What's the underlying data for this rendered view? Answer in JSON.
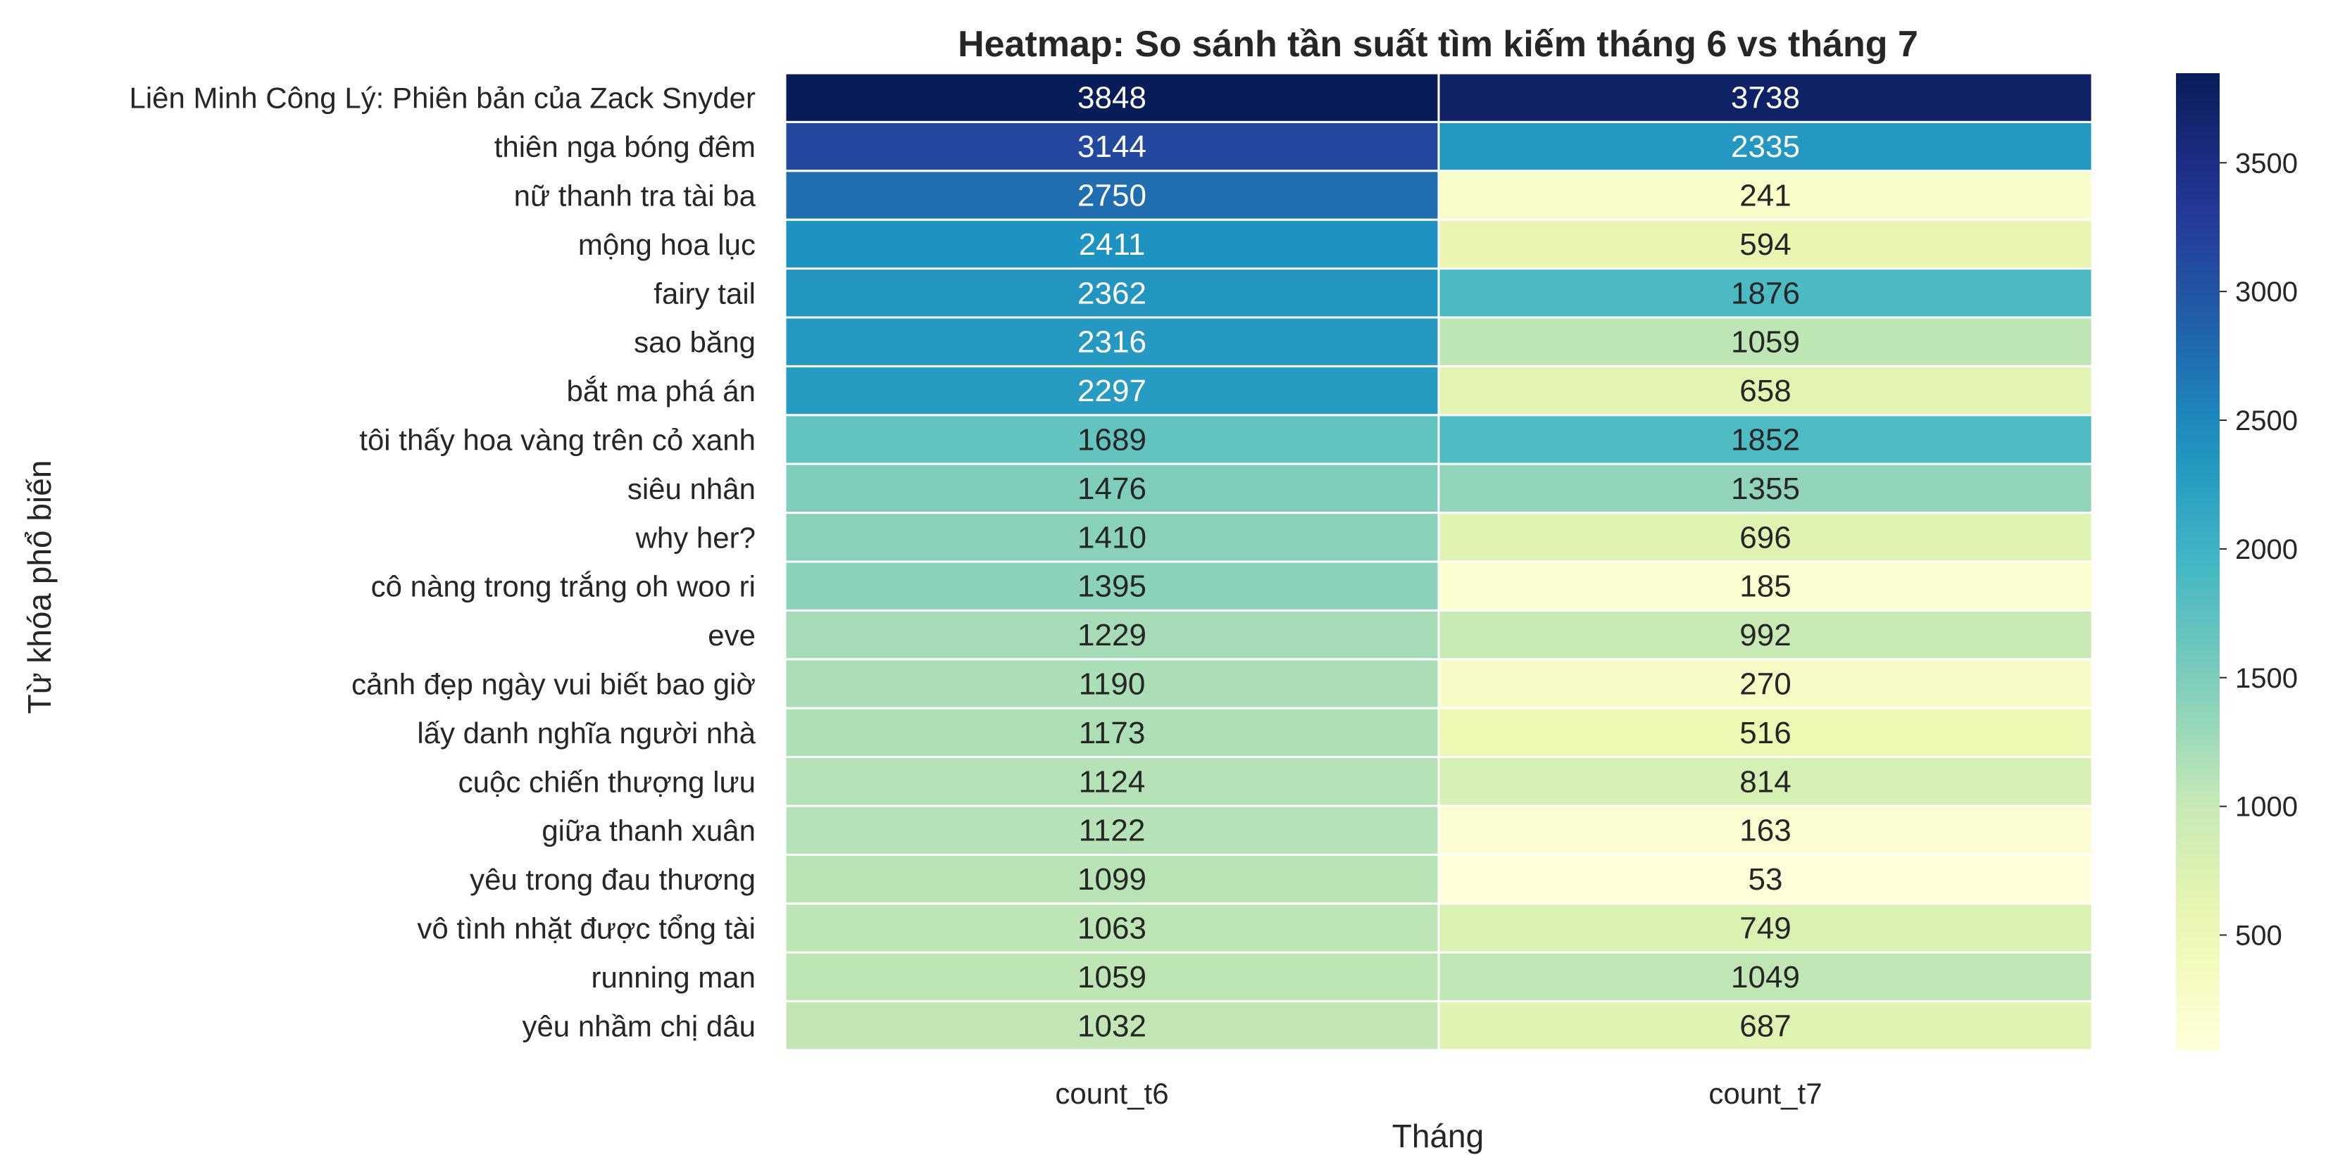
{
  "chart_data": {
    "type": "heatmap",
    "title": "Heatmap: So sánh tần suất tìm kiếm tháng 6 vs tháng 7",
    "xlabel": "Tháng",
    "ylabel": "Từ khóa phổ biến",
    "columns": [
      "count_t6",
      "count_t7"
    ],
    "rows": [
      "Liên Minh Công Lý: Phiên bản của Zack Snyder",
      "thiên nga bóng đêm",
      "nữ thanh tra tài ba",
      "mộng hoa lục",
      "fairy tail",
      "sao băng",
      "bắt ma phá án",
      "tôi thấy hoa vàng trên cỏ xanh",
      "siêu nhân",
      "why her?",
      "cô nàng trong trắng oh woo ri",
      "eve",
      "cảnh đẹp ngày vui biết bao giờ",
      "lấy danh nghĩa người nhà",
      "cuộc chiến thượng lưu",
      "giữa thanh xuân",
      "yêu trong đau thương",
      "vô tình nhặt được tổng tài",
      "running man",
      "yêu nhầm chị dâu"
    ],
    "values": [
      [
        3848,
        3738
      ],
      [
        3144,
        2335
      ],
      [
        2750,
        241
      ],
      [
        2411,
        594
      ],
      [
        2362,
        1876
      ],
      [
        2316,
        1059
      ],
      [
        2297,
        658
      ],
      [
        1689,
        1852
      ],
      [
        1476,
        1355
      ],
      [
        1410,
        696
      ],
      [
        1395,
        185
      ],
      [
        1229,
        992
      ],
      [
        1190,
        270
      ],
      [
        1173,
        516
      ],
      [
        1124,
        814
      ],
      [
        1122,
        163
      ],
      [
        1099,
        53
      ],
      [
        1063,
        749
      ],
      [
        1059,
        1049
      ],
      [
        1032,
        687
      ]
    ],
    "colormap": "YlGnBu",
    "colorbar": {
      "min": 53,
      "max": 3848,
      "ticks": [
        500,
        1000,
        1500,
        2000,
        2500,
        3000,
        3500
      ]
    },
    "annotated": true,
    "gridlines": "white cell borders"
  }
}
